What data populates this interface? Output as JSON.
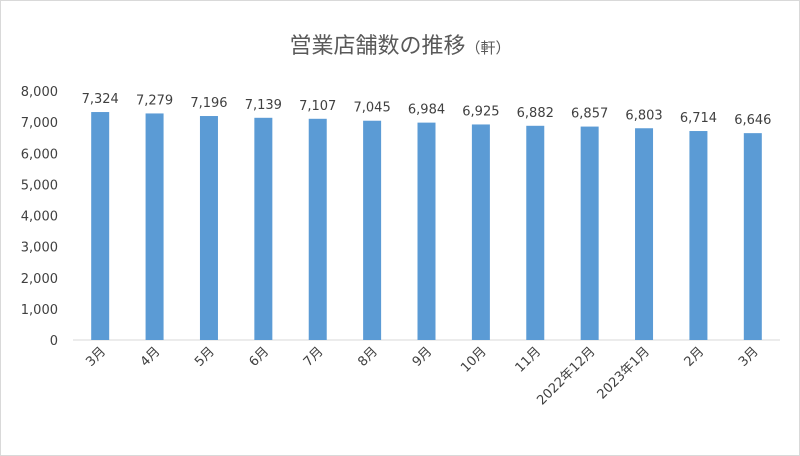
{
  "chart_data": {
    "type": "bar",
    "title": "営業店舗数の推移",
    "title_unit": "（軒）",
    "categories": [
      "3月",
      "4月",
      "5月",
      "6月",
      "7月",
      "8月",
      "9月",
      "10月",
      "11月",
      "2022年12月",
      "2023年1月",
      "2月",
      "3月"
    ],
    "values": [
      7324,
      7279,
      7196,
      7139,
      7107,
      7045,
      6984,
      6925,
      6882,
      6857,
      6803,
      6714,
      6646
    ],
    "data_labels": [
      "7,324",
      "7,279",
      "7,196",
      "7,139",
      "7,107",
      "7,045",
      "6,984",
      "6,925",
      "6,882",
      "6,857",
      "6,803",
      "6,714",
      "6,646"
    ],
    "y_ticks": [
      "0",
      "1,000",
      "2,000",
      "3,000",
      "4,000",
      "5,000",
      "6,000",
      "7,000",
      "8,000"
    ],
    "ylim": [
      0,
      8000
    ],
    "grid": false,
    "legend": "none",
    "bar_color": "#5b9bd5"
  }
}
